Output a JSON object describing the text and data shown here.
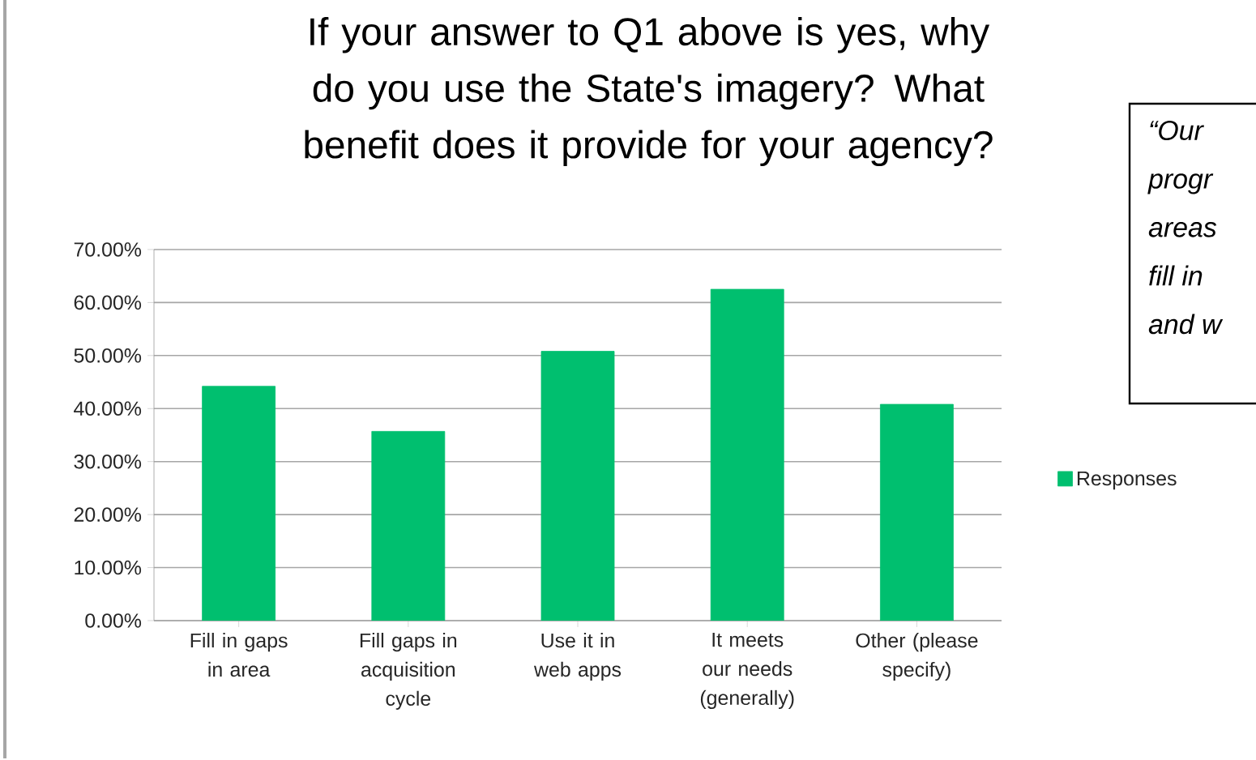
{
  "chart_data": {
    "type": "bar",
    "title": "If your answer to Q1 above is yes, why do you use the State's imagery? What benefit does it provide for your agency?",
    "categories": [
      "Fill in gaps in area",
      "Fill gaps in acquisition cycle",
      "Use it in web apps",
      "It meets our needs (generally)",
      "Other (please specify)"
    ],
    "series": [
      {
        "name": "Responses",
        "color": "#00bf6f",
        "values": [
          44.2,
          35.7,
          50.8,
          62.5,
          40.8
        ]
      }
    ],
    "ylim": [
      0,
      70
    ],
    "yticks": [
      {
        "value": 0,
        "label": "0.00%"
      },
      {
        "value": 10,
        "label": "10.00%"
      },
      {
        "value": 20,
        "label": "20.00%"
      },
      {
        "value": 30,
        "label": "30.00%"
      },
      {
        "value": 40,
        "label": "40.00%"
      },
      {
        "value": 50,
        "label": "50.00%"
      },
      {
        "value": 60,
        "label": "60.00%"
      },
      {
        "value": 70,
        "label": "70.00%"
      }
    ],
    "grid": "y",
    "legend": "right",
    "annotations": [
      "“Our",
      "progr",
      "areas",
      "fill in",
      "and w"
    ]
  }
}
